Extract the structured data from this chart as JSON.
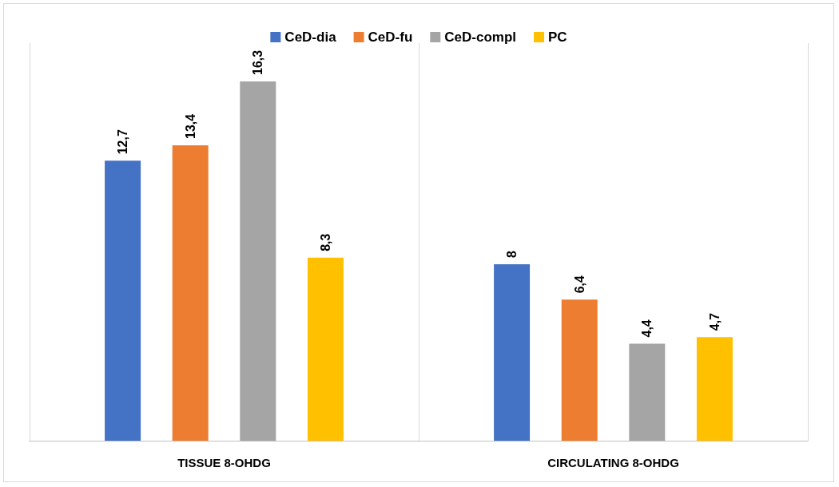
{
  "chart_data": {
    "type": "bar",
    "categories": [
      "TISSUE 8-OHDG",
      "CIRCULATING 8-OHDG"
    ],
    "series": [
      {
        "name": "CeD-dia",
        "color": "#4472c4",
        "values": [
          12.7,
          8
        ],
        "value_labels": [
          "12,7",
          "8"
        ]
      },
      {
        "name": "CeD-fu",
        "color": "#ed7d31",
        "values": [
          13.4,
          6.4
        ],
        "value_labels": [
          "13,4",
          "6,4"
        ]
      },
      {
        "name": "CeD-compl",
        "color": "#a5a5a5",
        "values": [
          16.3,
          4.4
        ],
        "value_labels": [
          "16,3",
          "4,4"
        ]
      },
      {
        "name": "PC",
        "color": "#ffc000",
        "values": [
          8.3,
          4.7
        ],
        "value_labels": [
          "8,3",
          "4,7"
        ]
      }
    ],
    "legend": "top",
    "tick_labels": "x"
  }
}
